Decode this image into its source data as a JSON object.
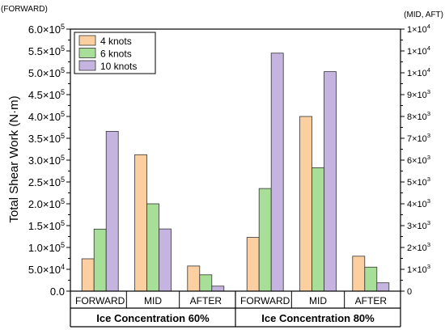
{
  "chart_data": {
    "type": "bar",
    "ylabel": "Total Shear Work (N·m)",
    "left_axis_caption": "(FORWARD)",
    "right_axis_caption": "(MID, AFT)",
    "left_axis": {
      "ylim": [
        0,
        600000
      ],
      "ticks": [
        {
          "base": "0.0",
          "exp": ""
        },
        {
          "base": "5.0×10",
          "exp": "4"
        },
        {
          "base": "1.0×10",
          "exp": "5"
        },
        {
          "base": "1.5×10",
          "exp": "5"
        },
        {
          "base": "2.0×10",
          "exp": "5"
        },
        {
          "base": "2.5×10",
          "exp": "5"
        },
        {
          "base": "3.0×10",
          "exp": "5"
        },
        {
          "base": "3.5×10",
          "exp": "5"
        },
        {
          "base": "4.0×10",
          "exp": "5"
        },
        {
          "base": "4.5×10",
          "exp": "5"
        },
        {
          "base": "5.0×10",
          "exp": "5"
        },
        {
          "base": "5.5×10",
          "exp": "5"
        },
        {
          "base": "6.0×10",
          "exp": "5"
        }
      ]
    },
    "right_axis": {
      "ylim": [
        0,
        12000
      ],
      "ticks": [
        {
          "base": "0",
          "exp": ""
        },
        {
          "base": "1×10",
          "exp": "3"
        },
        {
          "base": "2×10",
          "exp": "3"
        },
        {
          "base": "3×10",
          "exp": "3"
        },
        {
          "base": "4×10",
          "exp": "3"
        },
        {
          "base": "5×10",
          "exp": "3"
        },
        {
          "base": "6×10",
          "exp": "3"
        },
        {
          "base": "7×10",
          "exp": "3"
        },
        {
          "base": "8×10",
          "exp": "3"
        },
        {
          "base": "9×10",
          "exp": "3"
        },
        {
          "base": "1×10",
          "exp": "4"
        },
        {
          "base": "1×10",
          "exp": "4"
        },
        {
          "base": "1×10",
          "exp": "4"
        }
      ]
    },
    "groups": [
      {
        "label": "Ice Concentration 60%",
        "categories": [
          "FORWARD",
          "MID",
          "AFTER"
        ]
      },
      {
        "label": "Ice Concentration 80%",
        "categories": [
          "FORWARD",
          "MID",
          "AFTER"
        ]
      }
    ],
    "series": [
      {
        "name": "4 knots",
        "color": "#fbcfa0",
        "values": [
          74000,
          6250,
          1150,
          123000,
          8000,
          1600
        ]
      },
      {
        "name": "6 knots",
        "color": "#a8df98",
        "values": [
          142000,
          4000,
          750,
          235000,
          5650,
          1100
        ]
      },
      {
        "name": "10 knots",
        "color": "#c5b4e0",
        "values": [
          366000,
          2850,
          230,
          545000,
          10050,
          380
        ]
      }
    ],
    "category_axis": [
      "left",
      "right",
      "right",
      "left",
      "right",
      "right"
    ],
    "legend": "top-left",
    "grid": false
  }
}
